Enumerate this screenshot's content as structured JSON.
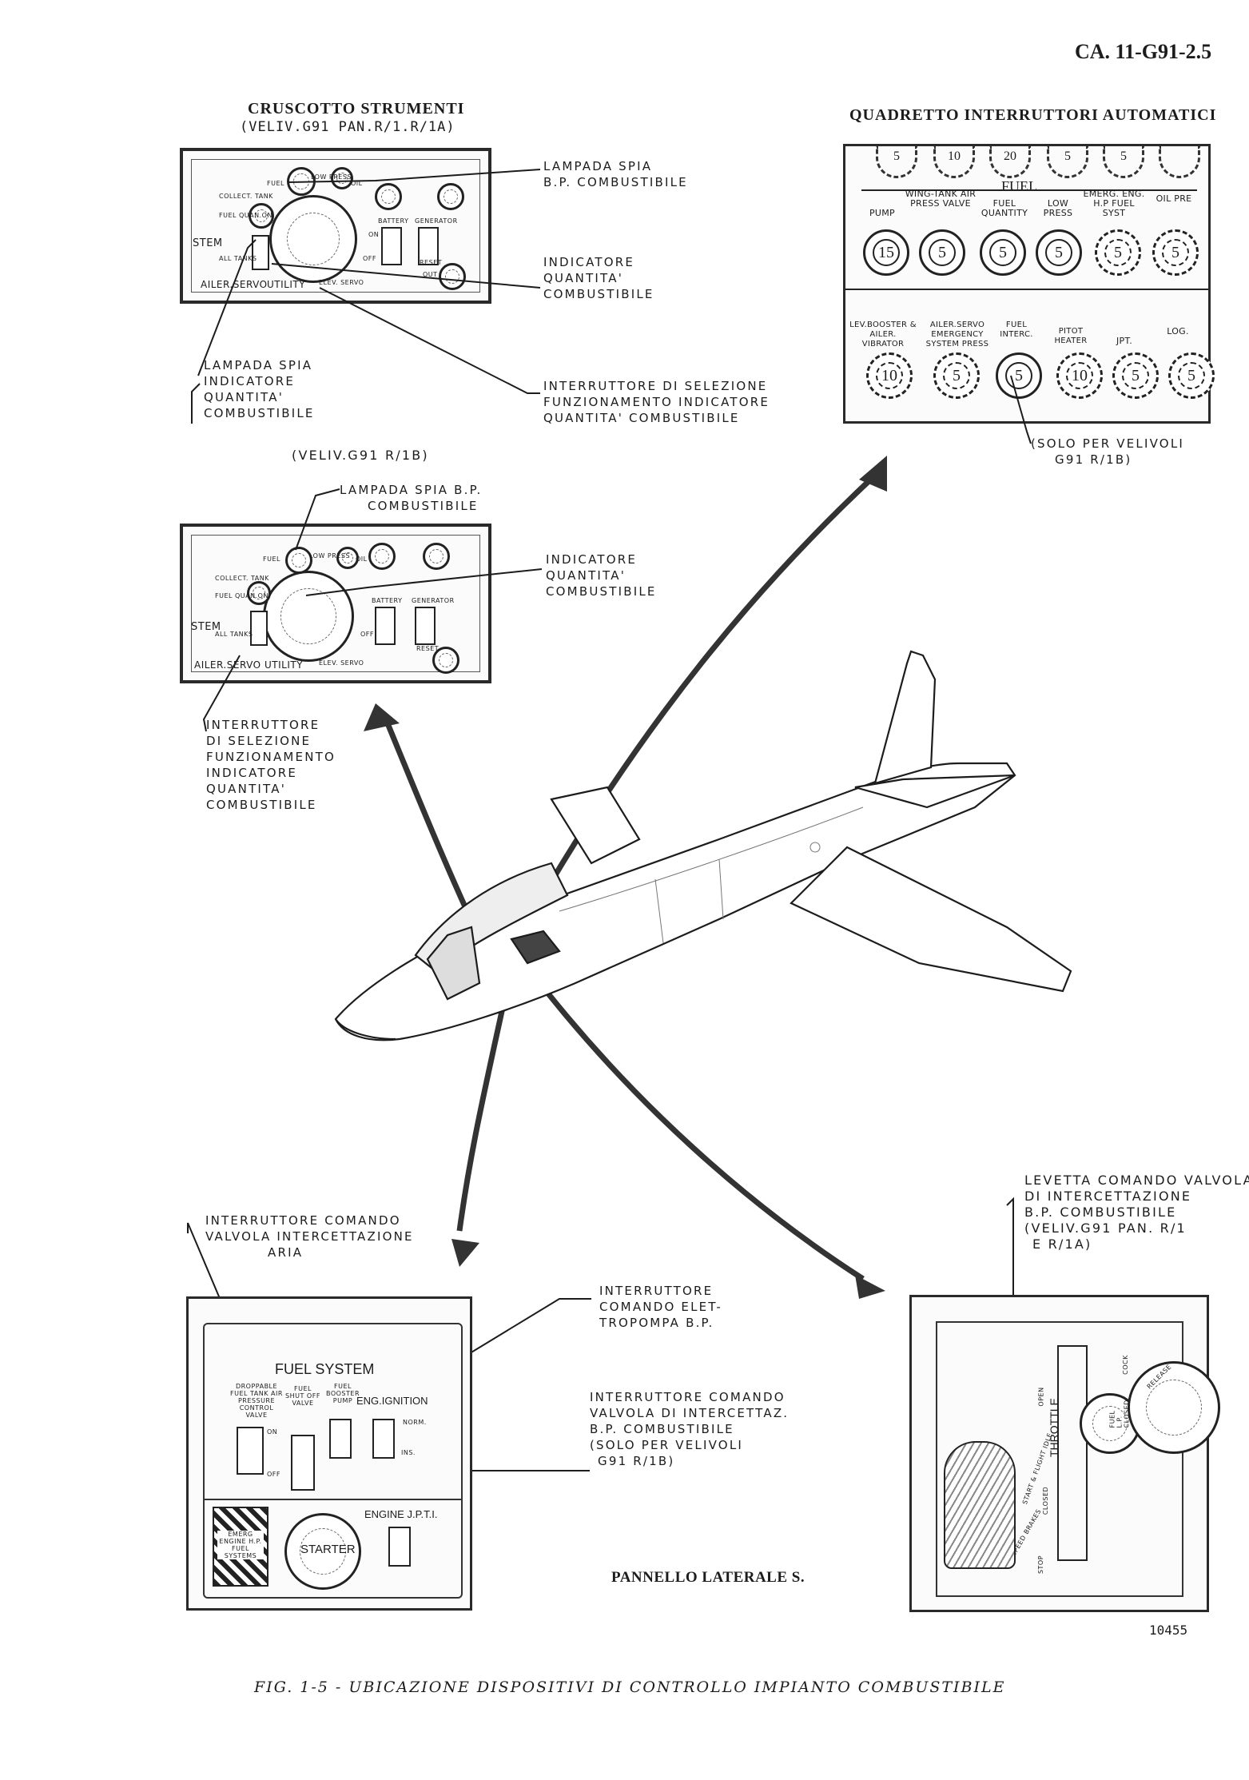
{
  "doc_number": "CA. 11-G91-2.5",
  "top_left": {
    "title": "CRUSCOTTO STRUMENTI",
    "subtitle": "(VELIV.G91 PAN.R/1.R/1A)",
    "callout_lampada": [
      "LAMPADA SPIA",
      "B.P. COMBUSTIBILE"
    ],
    "callout_indicatore": [
      "INDICATORE",
      "QUANTITA'",
      "COMBUSTIBILE"
    ],
    "callout_lampada_indicatore": [
      "LAMPADA SPIA",
      "INDICATORE",
      "QUANTITA'",
      "COMBUSTIBILE"
    ],
    "callout_interruttore": [
      "INTERRUTTORE DI SELEZIONE",
      "FUNZIONAMENTO INDICATORE",
      "QUANTITA' COMBUSTIBILE"
    ]
  },
  "mid_left": {
    "subtitle": "(VELIV.G91 R/1B)",
    "callout_lampada": [
      "LAMPADA SPIA B.P.",
      "COMBUSTIBILE"
    ],
    "callout_indicatore": [
      "INDICATORE",
      "QUANTITA'",
      "COMBUSTIBILE"
    ],
    "callout_interruttore": [
      "INTERRUTTORE",
      "DI SELEZIONE",
      "FUNZIONAMENTO",
      "INDICATORE",
      "QUANTITA'",
      "COMBUSTIBILE"
    ]
  },
  "panel_labels": {
    "fuel": "FUEL",
    "low_press": "LOW PRESS",
    "oil": "OIL",
    "collect_tank": "COLLECT. TANK",
    "fuel_quan_on": "FUEL QUAN.ON",
    "all_tanks": "ALL TANKS",
    "stem": "STEM",
    "battery": "BATTERY",
    "generator": "GENERATOR",
    "off": "OFF",
    "on": "ON",
    "out": "OUT",
    "reset": "RESET",
    "ailer_servo": "AILER.SERVO",
    "utility": "UTILITY",
    "elev_servo": "ELEV. SERVO"
  },
  "top_right": {
    "title": "QUADRETTO INTERRUTTORI AUTOMATICI",
    "top_row_values": [
      "5",
      "10",
      "20",
      "5",
      "5"
    ],
    "fuel_header": "FUEL",
    "row1": [
      {
        "label": "PUMP",
        "value": "15"
      },
      {
        "label": "WING-TANK AIR PRESS VALVE",
        "value": "5"
      },
      {
        "label": "FUEL QUANTITY",
        "value": "5"
      },
      {
        "label": "LOW PRESS",
        "value": "5"
      },
      {
        "label": "EMERG. ENG. H.P FUEL SYST",
        "value": "5"
      },
      {
        "label": "OIL PRE",
        "value": "5"
      }
    ],
    "row2": [
      {
        "label": "LEV.BOOSTER & AILER. VIBRATOR",
        "value": "10"
      },
      {
        "label": "AILER.SERVO EMERGENCY SYSTEM PRESS",
        "value": "5"
      },
      {
        "label": "FUEL INTERC.",
        "value": "5"
      },
      {
        "label": "PITOT HEATER",
        "value": "10"
      },
      {
        "label": "JPT.",
        "value": "5"
      },
      {
        "label": "LOG.",
        "value": "5"
      }
    ],
    "note": [
      "(SOLO PER VELIVOLI",
      "G91 R/1B)"
    ]
  },
  "bottom_left": {
    "callout_aria": [
      "INTERRUTTORE COMANDO",
      "VALVOLA INTERCETTAZIONE",
      "ARIA"
    ],
    "callout_elettropompa": [
      "INTERRUTTORE",
      "COMANDO ELET-",
      "TROPOMPA B.P."
    ],
    "callout_valvola": [
      "INTERRUTTORE COMANDO",
      "VALVOLA DI INTERCETTAZ.",
      "B.P. COMBUSTIBILE",
      "(SOLO PER VELIVOLI",
      "G91 R/1B)"
    ],
    "fuel_system": "FUEL SYSTEM",
    "sw1": "DROPPABLE FUEL TANK AIR PRESSURE CONTROL VALVE",
    "sw2": "FUEL SHUT OFF VALVE",
    "sw3": "FUEL BOOSTER PUMP",
    "ignition": "ENG.IGNITION",
    "norm": "NORM.",
    "ins": "INS.",
    "starter": "STARTER",
    "engine_jpt": "ENGINE J.P.T.I.",
    "emerg": "EMERG ENGINE H.P. FUEL SYSTEMS",
    "caption": "PANNELLO LATERALE S."
  },
  "bottom_right": {
    "callout": [
      "LEVETTA COMANDO VALVOLA",
      "DI INTERCETTAZIONE",
      "B.P. COMBUSTIBILE",
      "(VELIV.G91 PAN. R/1",
      "E R/1A)"
    ],
    "throttle": "THROTTLE",
    "open": "OPEN",
    "closed": "CLOSED",
    "stop": "STOP",
    "start_flight_idle": "START & FLIGHT IDLE",
    "speed_brakes": "SPEED BRAKES",
    "release": "RELEASE",
    "fuel_lp_closed": "FUEL L.P. CLOSED",
    "cock": "COCK"
  },
  "figure_number": "10455",
  "caption": "FIG. 1-5 - UBICAZIONE DISPOSITIVI DI CONTROLLO IMPIANTO COMBUSTIBILE"
}
